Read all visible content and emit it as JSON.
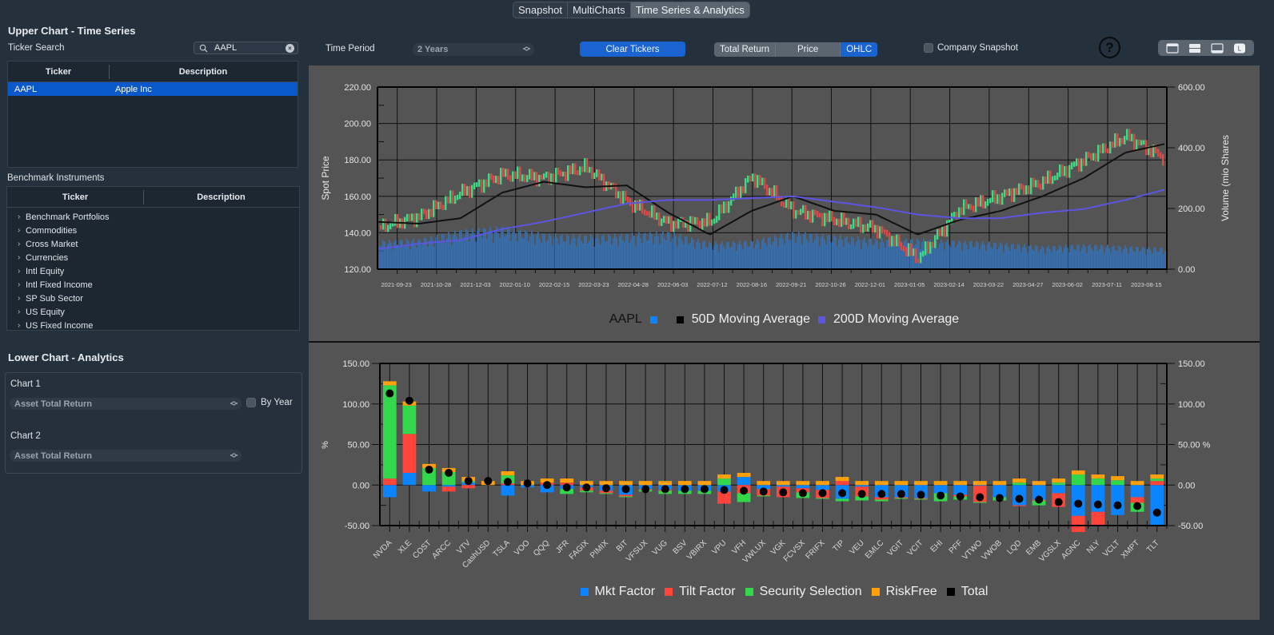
{
  "top_tabs": [
    {
      "label": "Snapshot",
      "active": false
    },
    {
      "label": "MultiCharts",
      "active": false
    },
    {
      "label": "Time Series & Analytics",
      "active": true
    }
  ],
  "sidebar": {
    "upper_title": "Upper Chart - Time Series",
    "ticker_search_label": "Ticker Search",
    "search": {
      "value": "AAPL",
      "icon": "search-icon",
      "clear_icon": "clear-circle-icon"
    },
    "ticker_table": {
      "columns": [
        "Ticker",
        "Description"
      ],
      "rows": [
        {
          "ticker": "AAPL",
          "description": "Apple Inc",
          "selected": true
        }
      ]
    },
    "benchmark_label": "Benchmark Instruments",
    "benchmark_table": {
      "columns": [
        "Ticker",
        "Description"
      ],
      "groups": [
        "Benchmark Portfolios",
        "Commodities",
        "Cross Market",
        "Currencies",
        "Intl Equity",
        "Intl Fixed Income",
        "SP Sub Sector",
        "US Equity",
        "US Fixed Income"
      ]
    },
    "lower_title": "Lower Chart - Analytics",
    "chart1": {
      "label": "Chart 1",
      "select_value": "Asset Total Return",
      "by_year_label": "By Year",
      "by_year_checked": false
    },
    "chart2": {
      "label": "Chart 2",
      "select_value": "Asset Total Return"
    }
  },
  "toolbar": {
    "time_period_label": "Time Period",
    "time_period_value": "2 Years",
    "clear_tickers_label": "Clear Tickers",
    "mode_segments": [
      {
        "label": "Total Return",
        "active": false
      },
      {
        "label": "Price",
        "active": false
      },
      {
        "label": "OHLC",
        "active": true
      }
    ],
    "company_snapshot_label": "Company Snapshot",
    "company_snapshot_checked": false,
    "help_icon": "question-circle-icon",
    "layout_icons": [
      "layout-top-panel-icon",
      "layout-split-icon",
      "layout-bottom-panel-icon",
      "layout-L-icon"
    ]
  },
  "colors": {
    "up_candle": "#3ddc84",
    "down_candle": "#e04848",
    "volume": "#3c6ea8",
    "ma50": "#111111",
    "ma200": "#5b55e0",
    "mkt_factor": "#0a84ff",
    "tilt_factor": "#ff453a",
    "security_selection": "#32d74b",
    "riskfree": "#ff9f0a",
    "total": "#000000",
    "accent_blue": "#1a63d1"
  },
  "upper_chart": {
    "y_left_label": "Spot Price",
    "y_right_label": "Volume (mio Shares",
    "y_left_ticks": [
      "220.00",
      "200.00",
      "180.00",
      "160.00",
      "140.00",
      "120.00"
    ],
    "y_right_ticks": [
      "600.00",
      "400.00",
      "200.00",
      "0.00"
    ],
    "x_ticks": [
      "2021-09-23",
      "2021-10-28",
      "2021-12-03",
      "2022-01-10",
      "2022-02-15",
      "2022-03-23",
      "2022-04-28",
      "2022-06-03",
      "2022-07-12",
      "2022-08-16",
      "2022-09-21",
      "2022-10-26",
      "2022-12-01",
      "2023-01-05",
      "2023-02-14",
      "2023-03-22",
      "2023-04-27",
      "2023-06-02",
      "2023-07-11",
      "2023-08-15"
    ],
    "legend": [
      {
        "label": "AAPL",
        "color": "#0a84ff",
        "swatch_after": true
      },
      {
        "label": "50D Moving Average",
        "color": "#000000"
      },
      {
        "label": "200D Moving Average",
        "color": "#5b55e0"
      }
    ]
  },
  "chart_data": [
    {
      "type": "line",
      "title": "AAPL OHLC with Moving Averages",
      "xlabel": "",
      "ylabel": "Spot Price",
      "ylabel_right": "Volume (mio Shares",
      "ylim": [
        120,
        220
      ],
      "ylim_right": [
        0,
        600
      ],
      "x": [
        "2021-09-23",
        "2021-10-28",
        "2021-12-03",
        "2022-01-10",
        "2022-02-15",
        "2022-03-23",
        "2022-04-28",
        "2022-06-03",
        "2022-07-12",
        "2022-08-16",
        "2022-09-21",
        "2022-10-26",
        "2022-12-01",
        "2023-01-05",
        "2023-02-14",
        "2023-03-22",
        "2023-04-27",
        "2023-06-02",
        "2023-07-11",
        "2023-08-15"
      ],
      "series": [
        {
          "name": "AAPL (close)",
          "values": [
            143,
            149,
            162,
            172,
            170,
            176,
            157,
            145,
            146,
            171,
            152,
            147,
            142,
            126,
            153,
            160,
            168,
            180,
            193,
            180
          ]
        },
        {
          "name": "50D Moving Average",
          "values": [
            146,
            145,
            148,
            162,
            168,
            165,
            166,
            151,
            139,
            152,
            160,
            152,
            150,
            139,
            147,
            152,
            160,
            170,
            184,
            189
          ]
        },
        {
          "name": "200D Moving Average",
          "values": [
            131,
            134,
            136,
            142,
            146,
            151,
            156,
            158,
            158,
            159,
            160,
            157,
            154,
            150,
            148,
            148,
            151,
            153,
            158,
            164
          ]
        },
        {
          "name": "Volume (mio shares)",
          "axis": "right",
          "values": [
            80,
            85,
            110,
            120,
            100,
            95,
            100,
            105,
            75,
            80,
            105,
            95,
            85,
            85,
            80,
            75,
            65,
            70,
            65,
            60
          ]
        }
      ],
      "grid": true,
      "legend_position": "bottom"
    },
    {
      "type": "bar",
      "stacked": true,
      "title": "Asset Total Return Attribution",
      "xlabel": "",
      "ylabel": "%",
      "ylim": [
        -50,
        150
      ],
      "y_ticks": [
        "150.00",
        "100.00",
        "50.00",
        "0.00",
        "-50.00"
      ],
      "categories": [
        "NVDA",
        "XLE",
        "COST",
        "ARCC",
        "VTV",
        "CashUSD",
        "TSLA",
        "VOO",
        "QQQ",
        "JFR",
        "FAGIX",
        "PIMIX",
        "BIT",
        "VFSUX",
        "VUG",
        "BSV",
        "VBIRX",
        "VPU",
        "VFH",
        "VWLUX",
        "VGK",
        "FCVSX",
        "FRIFX",
        "TIP",
        "VEU",
        "EMLC",
        "VGIT",
        "VCIT",
        "EHI",
        "PFF",
        "VTWO",
        "VWOB",
        "LQD",
        "EMB",
        "VGSLX",
        "AGNC",
        "NLY",
        "VCLT",
        "XMPT",
        "TLT"
      ],
      "series": [
        {
          "name": "Mkt Factor",
          "values": [
            -15,
            15,
            -8,
            -2,
            3,
            0,
            -13,
            -3,
            -9,
            -5,
            -3,
            -7,
            -12,
            -5,
            -6,
            -7,
            -7,
            -8,
            10,
            -5,
            -2,
            -4,
            -6,
            -17,
            -2,
            -15,
            -15,
            -16,
            -10,
            -12,
            -1,
            -15,
            -25,
            -18,
            -10,
            -38,
            -33,
            -37,
            -15,
            -50
          ]
        },
        {
          "name": "Tilt Factor",
          "values": [
            8,
            48,
            0,
            -6,
            -4,
            0,
            2,
            0,
            3,
            3,
            -4,
            -3,
            -2,
            -1,
            -1,
            0,
            0,
            -15,
            -10,
            -8,
            -13,
            -5,
            -10,
            5,
            -12,
            -3,
            -1,
            -1,
            0,
            -2,
            -20,
            0,
            -1,
            -1,
            -17,
            -20,
            -18,
            0,
            -7,
            5
          ]
        },
        {
          "name": "Security Selection",
          "values": [
            115,
            35,
            21,
            16,
            2,
            0,
            10,
            0,
            0,
            -6,
            -2,
            -1,
            -1,
            -2,
            -4,
            -4,
            -4,
            8,
            -11,
            -1,
            0,
            -7,
            -1,
            -3,
            -5,
            -2,
            -1,
            -1,
            -10,
            -4,
            -1,
            -4,
            3,
            -6,
            3,
            13,
            8,
            6,
            -11,
            3
          ]
        },
        {
          "name": "RiskFree",
          "values": [
            5,
            5,
            5,
            5,
            5,
            5,
            5,
            5,
            5,
            5,
            5,
            5,
            5,
            5,
            5,
            5,
            5,
            5,
            5,
            5,
            5,
            5,
            5,
            5,
            5,
            5,
            5,
            5,
            5,
            5,
            5,
            5,
            5,
            5,
            5,
            5,
            5,
            5,
            5,
            5
          ]
        },
        {
          "name": "Total",
          "marker": "dot",
          "values": [
            113,
            104,
            19,
            15,
            5,
            5,
            4,
            2,
            0,
            -3,
            -3,
            -4,
            -5,
            -5,
            -5,
            -5,
            -5,
            -6,
            -7,
            -8,
            -9,
            -10,
            -10,
            -10,
            -11,
            -11,
            -11,
            -12,
            -13,
            -14,
            -15,
            -16,
            -17,
            -18,
            -21,
            -23,
            -24,
            -25,
            -26,
            -34
          ]
        }
      ],
      "legend_position": "bottom",
      "grid": true
    }
  ],
  "lower_chart": {
    "y_label": "%",
    "y_ticks": [
      "150.00",
      "100.00",
      "50.00",
      "0.00",
      "-50.00"
    ],
    "legend": [
      {
        "label": "Mkt Factor",
        "color": "#0a84ff"
      },
      {
        "label": "Tilt Factor",
        "color": "#ff453a"
      },
      {
        "label": "Security Selection",
        "color": "#32d74b"
      },
      {
        "label": "RiskFree",
        "color": "#ff9f0a"
      },
      {
        "label": "Total",
        "color": "#000000"
      }
    ]
  }
}
